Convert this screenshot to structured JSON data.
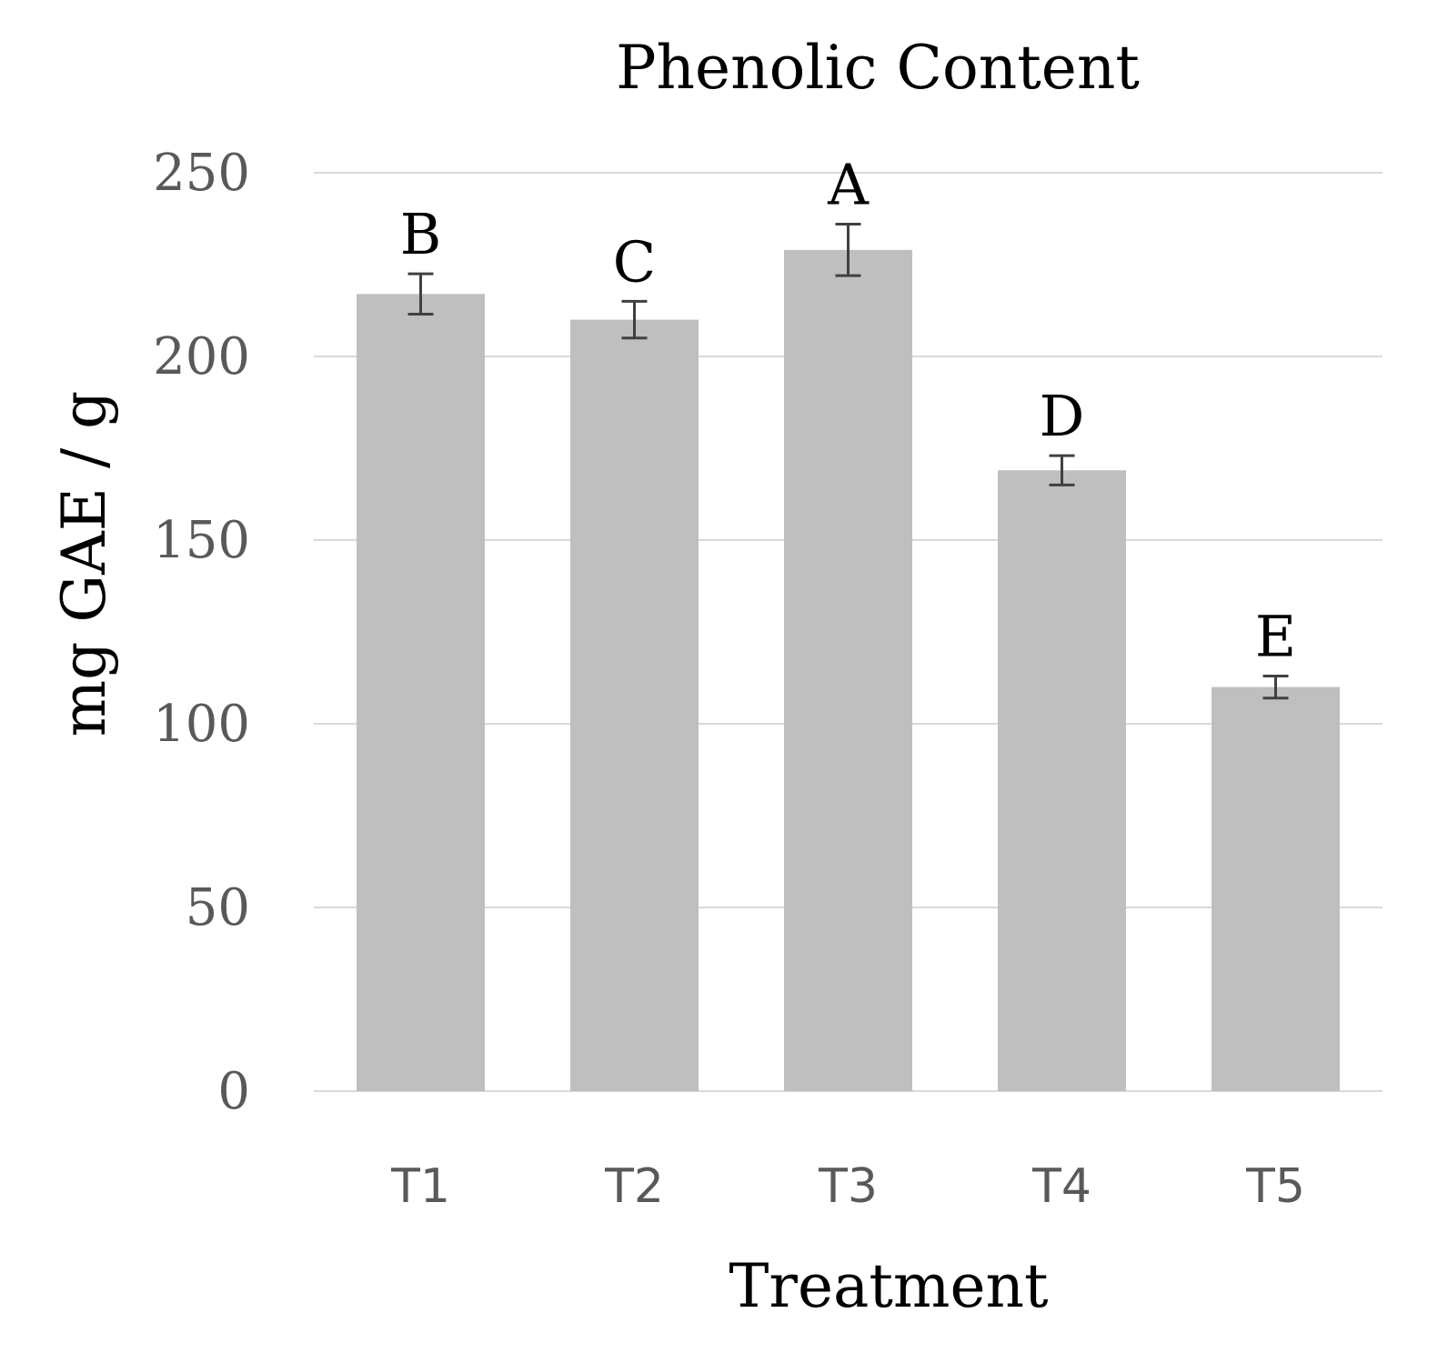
{
  "chart_data": {
    "type": "bar",
    "title": "Phenolic Content",
    "xlabel": "Treatment",
    "ylabel": "mg GAE / g",
    "categories": [
      "T1",
      "T2",
      "T3",
      "T4",
      "T5"
    ],
    "values": [
      217,
      210,
      229,
      169,
      110
    ],
    "errors": [
      5.5,
      5,
      7,
      4,
      3
    ],
    "labels": [
      "B",
      "C",
      "A",
      "D",
      "E"
    ],
    "ylim": [
      0,
      250
    ],
    "yticks": [
      "0",
      "50",
      "100",
      "150",
      "200",
      "250"
    ],
    "grid": true,
    "colors": {
      "bar": "#bfbfbf",
      "grid": "#d9d9d9",
      "error_bar": "#404040",
      "tick_text": "#595959",
      "text": "#000000"
    }
  }
}
